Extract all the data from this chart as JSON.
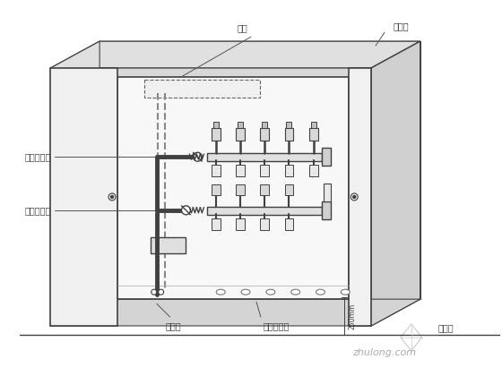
{
  "bg_color": "#ffffff",
  "line_color": "#404040",
  "gray_fill": "#e8e8e8",
  "light_fill": "#f5f5f5",
  "labels": {
    "xianhe": "线盒",
    "fenshui": "分水箱",
    "huishui": "采暖回水管",
    "gongshui": "采暖供水管",
    "zhuguan": "主管孔",
    "dipan": "地暖盘管孔",
    "ground": "地平面",
    "dim": "250mm"
  },
  "watermark": "zhulong.com"
}
